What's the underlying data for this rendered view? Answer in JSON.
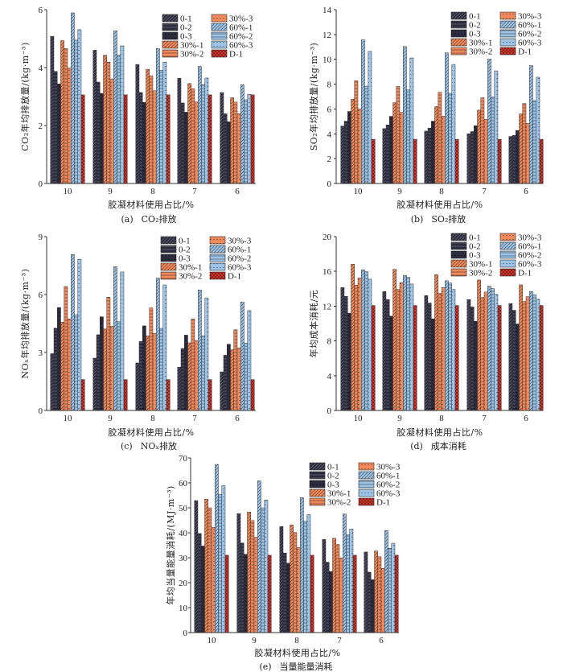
{
  "series_styles": [
    {
      "name": "0-1",
      "color": "#2d2c3e",
      "pattern": "diagonal"
    },
    {
      "name": "0-2",
      "color": "#2d2c3e",
      "pattern": "horizontal"
    },
    {
      "name": "0-3",
      "color": "#2d2c3e",
      "pattern": "dots"
    },
    {
      "name": "30%-1",
      "color": "#f08a5d",
      "pattern": "diagonal"
    },
    {
      "name": "30%-2",
      "color": "#f08a5d",
      "pattern": "horizontal"
    },
    {
      "name": "30%-3",
      "color": "#f08a5d",
      "pattern": "dots"
    },
    {
      "name": "60%-1",
      "color": "#9dc3e6",
      "pattern": "diagonal"
    },
    {
      "name": "60%-2",
      "color": "#9dc3e6",
      "pattern": "horizontal"
    },
    {
      "name": "60%-3",
      "color": "#9dc3e6",
      "pattern": "dots"
    },
    {
      "name": "D-1",
      "color": "#d9372b",
      "pattern": "crosshatch"
    }
  ],
  "chart_data": [
    {
      "panel_label": "(a)",
      "type": "bar",
      "title": "CO₂排放",
      "xlabel": "胶凝材料使用占比/%",
      "ylabel": "CO₂年均排放量/(kg·m⁻³)",
      "categories": [
        "10",
        "9",
        "8",
        "7",
        "6"
      ],
      "ylim": [
        0,
        6
      ],
      "yticks": [
        0,
        2,
        4,
        6
      ],
      "grid": false,
      "legend": "top-right",
      "series": [
        {
          "name": "0-1",
          "values": [
            5.08,
            4.6,
            4.11,
            3.63,
            3.14
          ]
        },
        {
          "name": "0-2",
          "values": [
            3.87,
            3.5,
            3.14,
            2.78,
            2.41
          ]
        },
        {
          "name": "0-3",
          "values": [
            3.44,
            3.11,
            2.8,
            2.46,
            2.13
          ]
        },
        {
          "name": "30%-1",
          "values": [
            4.93,
            4.43,
            3.94,
            3.45,
            2.96
          ]
        },
        {
          "name": "30%-2",
          "values": [
            4.66,
            4.19,
            3.72,
            3.27,
            2.81
          ]
        },
        {
          "name": "30%-3",
          "values": [
            3.99,
            3.61,
            3.2,
            2.81,
            2.41
          ]
        },
        {
          "name": "60%-1",
          "values": [
            5.89,
            5.27,
            4.66,
            4.04,
            3.41
          ]
        },
        {
          "name": "60%-2",
          "values": [
            4.95,
            4.43,
            3.91,
            3.41,
            2.89
          ]
        },
        {
          "name": "60%-3",
          "values": [
            5.31,
            4.75,
            4.19,
            3.64,
            3.08
          ]
        },
        {
          "name": "D-1",
          "values": [
            3.06,
            3.06,
            3.06,
            3.06,
            3.06
          ]
        }
      ]
    },
    {
      "panel_label": "(b)",
      "type": "bar",
      "title": "SO₂排放",
      "xlabel": "胶凝材料使用占比/%",
      "ylabel": "SO₂年均排放量/(kg·m⁻³)",
      "categories": [
        "10",
        "9",
        "8",
        "7",
        "6"
      ],
      "ylim": [
        0,
        14
      ],
      "yticks": [
        0,
        2,
        4,
        6,
        8,
        10,
        12,
        14
      ],
      "grid": false,
      "legend": "top-right",
      "series": [
        {
          "name": "0-1",
          "values": [
            4.63,
            4.42,
            4.22,
            4.01,
            3.79
          ]
        },
        {
          "name": "0-2",
          "values": [
            5.02,
            4.72,
            4.46,
            4.18,
            3.88
          ]
        },
        {
          "name": "0-3",
          "values": [
            5.8,
            5.41,
            5.02,
            4.66,
            4.27
          ]
        },
        {
          "name": "30%-1",
          "values": [
            6.79,
            6.51,
            6.19,
            5.91,
            5.6
          ]
        },
        {
          "name": "30%-2",
          "values": [
            8.28,
            7.82,
            7.35,
            6.9,
            6.44
          ]
        },
        {
          "name": "30%-3",
          "values": [
            6.01,
            5.73,
            5.43,
            5.17,
            4.85
          ]
        },
        {
          "name": "60%-1",
          "values": [
            11.57,
            11.03,
            10.52,
            10.02,
            9.5
          ]
        },
        {
          "name": "60%-2",
          "values": [
            7.84,
            7.54,
            7.26,
            6.96,
            6.66
          ]
        },
        {
          "name": "60%-3",
          "values": [
            10.65,
            10.11,
            9.59,
            9.07,
            8.56
          ]
        },
        {
          "name": "D-1",
          "values": [
            3.56,
            3.56,
            3.56,
            3.56,
            3.56
          ]
        }
      ]
    },
    {
      "panel_label": "(c)",
      "type": "bar",
      "title": "NOₓ排放",
      "xlabel": "胶凝材料使用占比/%",
      "ylabel": "NOₓ年均排放量/(kg·m⁻³)",
      "categories": [
        "10",
        "9",
        "8",
        "7",
        "6"
      ],
      "ylim": [
        0,
        9
      ],
      "yticks": [
        0,
        3,
        6,
        9
      ],
      "grid": false,
      "legend": "top-right",
      "series": [
        {
          "name": "0-1",
          "values": [
            2.94,
            2.71,
            2.46,
            2.24,
            2.0
          ]
        },
        {
          "name": "0-2",
          "values": [
            4.26,
            3.92,
            3.57,
            3.21,
            2.86
          ]
        },
        {
          "name": "0-3",
          "values": [
            5.33,
            4.85,
            4.38,
            3.9,
            3.43
          ]
        },
        {
          "name": "30%-1",
          "values": [
            4.57,
            4.22,
            3.86,
            3.5,
            3.14
          ]
        },
        {
          "name": "30%-2",
          "values": [
            6.42,
            5.86,
            5.31,
            4.74,
            4.18
          ]
        },
        {
          "name": "30%-3",
          "values": [
            4.74,
            4.36,
            3.99,
            3.61,
            3.24
          ]
        },
        {
          "name": "60%-1",
          "values": [
            8.07,
            7.44,
            6.85,
            6.24,
            5.61
          ]
        },
        {
          "name": "60%-2",
          "values": [
            4.96,
            4.6,
            4.25,
            3.86,
            3.49
          ]
        },
        {
          "name": "60%-3",
          "values": [
            7.83,
            7.17,
            6.5,
            5.83,
            5.17
          ]
        },
        {
          "name": "D-1",
          "values": [
            1.6,
            1.6,
            1.6,
            1.6,
            1.6
          ]
        }
      ]
    },
    {
      "panel_label": "(d)",
      "type": "bar",
      "title": "成本消耗",
      "xlabel": "胶凝材料使用占比/%",
      "ylabel": "年均成本消耗/元",
      "categories": [
        "10",
        "9",
        "8",
        "7",
        "6"
      ],
      "ylim": [
        0,
        20
      ],
      "yticks": [
        0,
        4,
        8,
        12,
        16,
        20
      ],
      "grid": false,
      "legend": "top-right",
      "series": [
        {
          "name": "0-1",
          "values": [
            14.14,
            13.68,
            13.22,
            12.76,
            12.3
          ]
        },
        {
          "name": "0-2",
          "values": [
            13.13,
            12.76,
            12.36,
            11.93,
            11.53
          ]
        },
        {
          "name": "0-3",
          "values": [
            11.19,
            10.85,
            10.54,
            10.26,
            9.95
          ]
        },
        {
          "name": "30%-1",
          "values": [
            16.83,
            16.24,
            15.62,
            15.01,
            14.45
          ]
        },
        {
          "name": "30%-2",
          "values": [
            14.42,
            13.93,
            13.47,
            13.0,
            12.54
          ]
        },
        {
          "name": "30%-3",
          "values": [
            15.25,
            14.7,
            14.14,
            13.62,
            13.1
          ]
        },
        {
          "name": "60%-1",
          "values": [
            16.18,
            15.53,
            14.92,
            14.3,
            13.68
          ]
        },
        {
          "name": "60%-2",
          "values": [
            15.96,
            15.32,
            14.67,
            14.02,
            13.31
          ]
        },
        {
          "name": "60%-3",
          "values": [
            15.1,
            14.55,
            13.93,
            13.37,
            12.79
          ]
        },
        {
          "name": "D-1",
          "values": [
            12.08,
            12.08,
            12.08,
            12.08,
            12.08
          ]
        }
      ]
    },
    {
      "panel_label": "(e)",
      "type": "bar",
      "title": "当量能量消耗",
      "xlabel": "胶凝材料使用占比/%",
      "ylabel": "年均当量能量消耗/(MJ·m⁻³)",
      "categories": [
        "10",
        "9",
        "8",
        "7",
        "6"
      ],
      "ylim": [
        0,
        70
      ],
      "yticks": [
        0,
        10,
        20,
        30,
        40,
        50,
        60,
        70
      ],
      "grid": false,
      "legend": "top-right",
      "series": [
        {
          "name": "0-1",
          "values": [
            52.9,
            47.7,
            42.5,
            37.3,
            32.3
          ]
        },
        {
          "name": "0-2",
          "values": [
            39.7,
            35.9,
            31.9,
            28.2,
            24.2
          ]
        },
        {
          "name": "0-3",
          "values": [
            34.7,
            31.4,
            27.8,
            24.5,
            21.2
          ]
        },
        {
          "name": "30%-1",
          "values": [
            53.5,
            48.3,
            43.1,
            37.8,
            32.7
          ]
        },
        {
          "name": "30%-2",
          "values": [
            50.0,
            44.9,
            40.1,
            35.3,
            30.4
          ]
        },
        {
          "name": "30%-3",
          "values": [
            42.2,
            38.2,
            34.1,
            29.9,
            25.7
          ]
        },
        {
          "name": "60%-1",
          "values": [
            67.4,
            60.8,
            54.1,
            47.5,
            40.9
          ]
        },
        {
          "name": "60%-2",
          "values": [
            55.4,
            50.0,
            44.6,
            39.2,
            33.8
          ]
        },
        {
          "name": "60%-3",
          "values": [
            58.9,
            53.1,
            47.3,
            41.5,
            35.8
          ]
        },
        {
          "name": "D-1",
          "values": [
            31.0,
            31.0,
            31.0,
            31.0,
            31.0
          ]
        }
      ]
    }
  ]
}
